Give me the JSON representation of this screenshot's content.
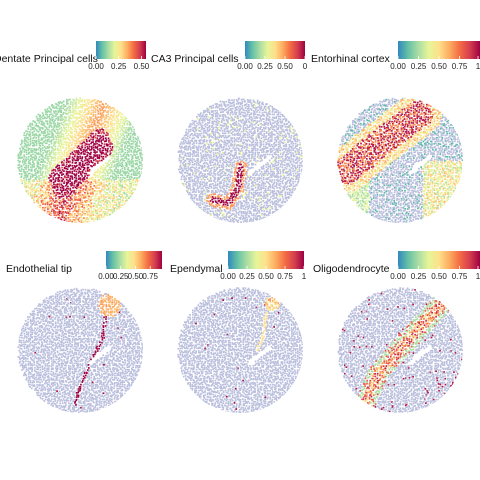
{
  "figure": {
    "type": "faceted spatial scatter (cell-type proportion maps)",
    "colormap": "Spectral (reversed): low = blue, high = red",
    "colorscale": [
      "#3288bd",
      "#66c2a5",
      "#abdda4",
      "#e6f598",
      "#fee08b",
      "#fdae61",
      "#f46d43",
      "#d53e4f",
      "#9e0142"
    ],
    "background_point_color": "#b9bedc"
  },
  "chart_data": [
    {
      "type": "scatter",
      "title": "Dentate Principal cells",
      "legend": {
        "ticks": [
          "0.00",
          "0.25",
          "0.50"
        ],
        "range": [
          0,
          0.55
        ],
        "placement": "top"
      },
      "hot_region": "curved band inside the circle (dentate gyrus arc)",
      "value_range": [
        0,
        0.55
      ]
    },
    {
      "type": "scatter",
      "title": "CA3 Principal cells",
      "legend": {
        "ticks": [
          "0.00",
          "0.25",
          "0.50",
          "0"
        ],
        "range": [
          0,
          0.75
        ],
        "placement": "top"
      },
      "hot_region": "narrow hook near bottom-left of center",
      "value_range": [
        0,
        0.75
      ]
    },
    {
      "type": "scatter",
      "title": "Entorhinal cortex",
      "legend": {
        "ticks": [
          "0.00",
          "0.25",
          "0.50",
          "0.75",
          "1"
        ],
        "range": [
          0,
          1
        ],
        "placement": "top"
      },
      "hot_region": "wide diagonal band on the left side",
      "value_range": [
        0,
        1
      ]
    },
    {
      "type": "scatter",
      "title": "Endothelial tip",
      "legend": {
        "ticks": [
          "0.00",
          "0.25",
          "0.50",
          "0.75"
        ],
        "range": [
          0,
          0.95
        ],
        "placement": "top"
      },
      "hot_region": "small patch near top-right and thin vessel lines",
      "value_range": [
        0,
        0.95
      ]
    },
    {
      "type": "scatter",
      "title": "Ependymal",
      "legend": {
        "ticks": [
          "0.00",
          "0.25",
          "0.50",
          "0.75",
          "1"
        ],
        "range": [
          0,
          1
        ],
        "placement": "top"
      },
      "hot_region": "small cluster near top-right edge",
      "value_range": [
        0,
        1
      ]
    },
    {
      "type": "scatter",
      "title": "Oligodendrocyte",
      "legend": {
        "ticks": [
          "0.00",
          "0.25",
          "0.50",
          "0.75",
          "1"
        ],
        "range": [
          0,
          1
        ],
        "placement": "top"
      },
      "hot_region": "diagonal fiber tract from upper-right to lower-left",
      "value_range": [
        0,
        1
      ]
    }
  ]
}
